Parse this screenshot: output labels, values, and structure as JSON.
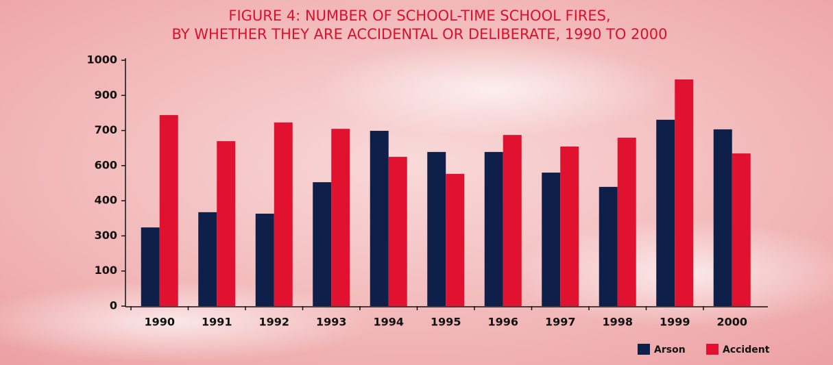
{
  "chart_data": {
    "type": "bar",
    "title": "FIGURE 4: NUMBER OF SCHOOL-TIME SCHOOL FIRES,",
    "subtitle": "BY WHETHER THEY ARE ACCIDENTAL OR DELIBERATE, 1990 TO 2000",
    "categories": [
      "1990",
      "1991",
      "1992",
      "1993",
      "1994",
      "1995",
      "1996",
      "1997",
      "1998",
      "1999",
      "2000"
    ],
    "series": [
      {
        "name": "Arson",
        "color": "#0e1f4a",
        "values": [
          320,
          382,
          376,
          504,
          713,
          627,
          627,
          543,
          485,
          758,
          719
        ]
      },
      {
        "name": "Accident",
        "color": "#e0122f",
        "values": [
          777,
          671,
          747,
          721,
          607,
          538,
          696,
          649,
          685,
          922,
          621
        ]
      }
    ],
    "ylim": [
      0,
      1000
    ],
    "yticks": [
      0,
      {
        "value": 142.857,
        "label": "100"
      },
      {
        "value": 285.714,
        "label": "300"
      },
      {
        "value": 428.571,
        "label": "400"
      },
      {
        "value": 571.429,
        "label": "600"
      },
      {
        "value": 714.286,
        "label": "700"
      },
      {
        "value": 857.143,
        "label": "900"
      },
      1000
    ],
    "legend": "bottom-right"
  }
}
